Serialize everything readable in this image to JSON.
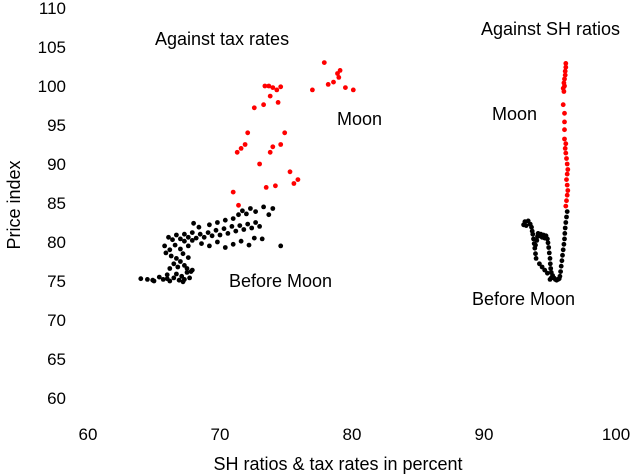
{
  "chart_data": {
    "type": "scatter",
    "title": "",
    "xlabel": "SH ratios & tax rates in percent",
    "ylabel": "Price index",
    "xlim": [
      60,
      100
    ],
    "ylim": [
      60,
      110
    ],
    "xticks": [
      "60",
      "70",
      "80",
      "90",
      "100"
    ],
    "yticks": [
      "60",
      "65",
      "70",
      "75",
      "80",
      "85",
      "90",
      "95",
      "100",
      "105",
      "110"
    ],
    "grid": false,
    "legend": "none",
    "annotations": {
      "tax_title": "Against tax rates",
      "sh_title": "Against SH ratios",
      "tax_moon": "Moon",
      "sh_moon": "Moon",
      "tax_before": "Before Moon",
      "sh_before": "Before Moon"
    },
    "colors": {
      "before_moon": "#000000",
      "moon": "#ff0000"
    },
    "series": [
      {
        "group": "tax rates",
        "period": "before",
        "points": [
          [
            64.0,
            75.3
          ],
          [
            64.5,
            75.2
          ],
          [
            65.0,
            75.0
          ],
          [
            65.4,
            75.5
          ],
          [
            65.7,
            75.2
          ],
          [
            66.0,
            75.8
          ],
          [
            66.2,
            75.0
          ],
          [
            66.5,
            75.4
          ],
          [
            66.7,
            75.9
          ],
          [
            66.9,
            75.1
          ],
          [
            67.1,
            75.6
          ],
          [
            67.3,
            75.2
          ],
          [
            67.5,
            76.1
          ],
          [
            67.7,
            75.4
          ],
          [
            66.2,
            76.6
          ],
          [
            66.5,
            77.2
          ],
          [
            66.8,
            76.8
          ],
          [
            67.0,
            77.5
          ],
          [
            67.3,
            77.0
          ],
          [
            67.5,
            76.6
          ],
          [
            67.8,
            76.2
          ],
          [
            66.3,
            78.2
          ],
          [
            66.7,
            77.9
          ],
          [
            67.2,
            78.5
          ],
          [
            67.6,
            78.0
          ],
          [
            65.8,
            79.5
          ],
          [
            66.2,
            79.0
          ],
          [
            66.6,
            79.6
          ],
          [
            67.0,
            79.1
          ],
          [
            67.3,
            80.1
          ],
          [
            67.6,
            79.5
          ],
          [
            67.9,
            80.2
          ],
          [
            66.1,
            80.6
          ],
          [
            66.4,
            80.3
          ],
          [
            66.7,
            80.9
          ],
          [
            67.0,
            80.4
          ],
          [
            67.3,
            81.0
          ],
          [
            67.6,
            80.6
          ],
          [
            67.9,
            81.2
          ],
          [
            68.2,
            80.5
          ],
          [
            68.5,
            81.0
          ],
          [
            68.8,
            80.6
          ],
          [
            69.1,
            81.2
          ],
          [
            69.4,
            80.8
          ],
          [
            69.7,
            81.5
          ],
          [
            70.0,
            80.9
          ],
          [
            70.3,
            81.7
          ],
          [
            70.6,
            81.1
          ],
          [
            70.9,
            82.0
          ],
          [
            71.2,
            81.4
          ],
          [
            71.5,
            82.1
          ],
          [
            71.8,
            81.6
          ],
          [
            72.1,
            82.3
          ],
          [
            72.4,
            81.8
          ],
          [
            72.7,
            82.5
          ],
          [
            73.0,
            82.0
          ],
          [
            68.0,
            82.4
          ],
          [
            68.4,
            81.9
          ],
          [
            69.2,
            82.2
          ],
          [
            69.8,
            82.5
          ],
          [
            70.4,
            82.8
          ],
          [
            71.0,
            83.0
          ],
          [
            71.4,
            83.5
          ],
          [
            71.7,
            84.0
          ],
          [
            72.0,
            83.6
          ],
          [
            72.3,
            84.3
          ],
          [
            72.7,
            83.9
          ],
          [
            73.3,
            84.5
          ],
          [
            73.7,
            83.5
          ],
          [
            74.0,
            84.3
          ],
          [
            68.6,
            79.8
          ],
          [
            69.2,
            79.5
          ],
          [
            69.8,
            80.0
          ],
          [
            70.4,
            79.3
          ],
          [
            71.0,
            79.7
          ],
          [
            71.6,
            80.1
          ],
          [
            72.2,
            79.6
          ],
          [
            72.6,
            80.5
          ],
          [
            73.2,
            80.4
          ],
          [
            74.6,
            79.5
          ],
          [
            65.9,
            78.6
          ],
          [
            67.9,
            76.4
          ],
          [
            66.0,
            75.3
          ],
          [
            67.2,
            74.9
          ],
          [
            64.9,
            75.1
          ]
        ]
      },
      {
        "group": "tax rates",
        "period": "moon",
        "points": [
          [
            71.0,
            86.4
          ],
          [
            71.4,
            84.7
          ],
          [
            71.3,
            91.5
          ],
          [
            71.6,
            92.0
          ],
          [
            71.9,
            92.5
          ],
          [
            72.1,
            94.0
          ],
          [
            73.0,
            90.0
          ],
          [
            73.5,
            87.0
          ],
          [
            73.8,
            91.5
          ],
          [
            74.2,
            87.2
          ],
          [
            74.6,
            92.5
          ],
          [
            74.9,
            94.0
          ],
          [
            75.3,
            89.0
          ],
          [
            75.6,
            87.5
          ],
          [
            75.9,
            88.0
          ],
          [
            72.6,
            97.2
          ],
          [
            73.3,
            97.6
          ],
          [
            73.8,
            98.7
          ],
          [
            74.4,
            97.9
          ],
          [
            73.4,
            100.0
          ],
          [
            73.7,
            100.0
          ],
          [
            74.0,
            99.8
          ],
          [
            74.3,
            99.5
          ],
          [
            74.6,
            99.9
          ],
          [
            77.0,
            99.5
          ],
          [
            77.9,
            103.0
          ],
          [
            78.6,
            100.5
          ],
          [
            78.9,
            101.6
          ],
          [
            79.1,
            102.0
          ],
          [
            79.0,
            101.1
          ],
          [
            79.5,
            99.8
          ],
          [
            80.1,
            99.5
          ],
          [
            78.2,
            100.2
          ],
          [
            74.0,
            92.2
          ]
        ]
      },
      {
        "group": "SH ratios",
        "period": "before",
        "points": [
          [
            93.0,
            82.2
          ],
          [
            93.1,
            82.6
          ],
          [
            93.2,
            82.1
          ],
          [
            93.35,
            82.7
          ],
          [
            93.5,
            82.3
          ],
          [
            93.6,
            81.9
          ],
          [
            93.65,
            81.4
          ],
          [
            93.7,
            81.0
          ],
          [
            93.75,
            80.4
          ],
          [
            93.8,
            79.8
          ],
          [
            93.85,
            79.2
          ],
          [
            93.9,
            79.6
          ],
          [
            94.0,
            80.2
          ],
          [
            94.05,
            80.7
          ],
          [
            94.1,
            81.1
          ],
          [
            94.2,
            80.8
          ],
          [
            94.3,
            81.0
          ],
          [
            94.4,
            80.6
          ],
          [
            94.5,
            80.9
          ],
          [
            94.6,
            80.5
          ],
          [
            94.7,
            80.8
          ],
          [
            94.8,
            80.4
          ],
          [
            94.85,
            79.9
          ],
          [
            94.9,
            79.3
          ],
          [
            94.95,
            78.6
          ],
          [
            95.0,
            77.9
          ],
          [
            95.02,
            77.2
          ],
          [
            95.05,
            76.6
          ],
          [
            95.1,
            76.1
          ],
          [
            95.2,
            75.7
          ],
          [
            95.3,
            75.4
          ],
          [
            95.4,
            75.2
          ],
          [
            95.5,
            75.1
          ],
          [
            95.6,
            75.2
          ],
          [
            95.7,
            75.3
          ],
          [
            95.75,
            75.6
          ],
          [
            95.8,
            76.2
          ],
          [
            95.85,
            76.9
          ],
          [
            95.9,
            77.6
          ],
          [
            95.95,
            78.3
          ],
          [
            96.0,
            79.0
          ],
          [
            96.05,
            79.7
          ],
          [
            96.1,
            80.4
          ],
          [
            96.12,
            81.1
          ],
          [
            96.15,
            81.8
          ],
          [
            96.2,
            82.5
          ],
          [
            96.25,
            83.2
          ],
          [
            96.3,
            83.9
          ],
          [
            94.2,
            77.2
          ],
          [
            94.4,
            76.8
          ],
          [
            94.6,
            76.4
          ],
          [
            94.8,
            76.0
          ],
          [
            93.9,
            78.5
          ],
          [
            93.95,
            77.9
          ],
          [
            95.1,
            75.4
          ],
          [
            95.0,
            75.2
          ]
        ]
      },
      {
        "group": "SH ratios",
        "period": "moon",
        "points": [
          [
            96.2,
            84.6
          ],
          [
            96.25,
            85.3
          ],
          [
            96.3,
            86.0
          ],
          [
            96.35,
            86.6
          ],
          [
            96.3,
            87.3
          ],
          [
            96.25,
            88.0
          ],
          [
            96.3,
            88.7
          ],
          [
            96.35,
            89.3
          ],
          [
            96.3,
            90.0
          ],
          [
            96.25,
            90.7
          ],
          [
            96.2,
            91.4
          ],
          [
            96.15,
            92.0
          ],
          [
            96.2,
            92.6
          ],
          [
            96.1,
            93.2
          ],
          [
            96.1,
            94.4
          ],
          [
            96.1,
            95.4
          ],
          [
            96.1,
            96.5
          ],
          [
            96.0,
            97.6
          ],
          [
            96.05,
            99.3
          ],
          [
            96.0,
            99.7
          ],
          [
            96.1,
            100.0
          ],
          [
            96.05,
            100.4
          ],
          [
            96.1,
            100.9
          ],
          [
            96.15,
            101.4
          ],
          [
            96.15,
            101.9
          ],
          [
            96.2,
            102.4
          ],
          [
            96.2,
            102.9
          ]
        ]
      }
    ]
  }
}
